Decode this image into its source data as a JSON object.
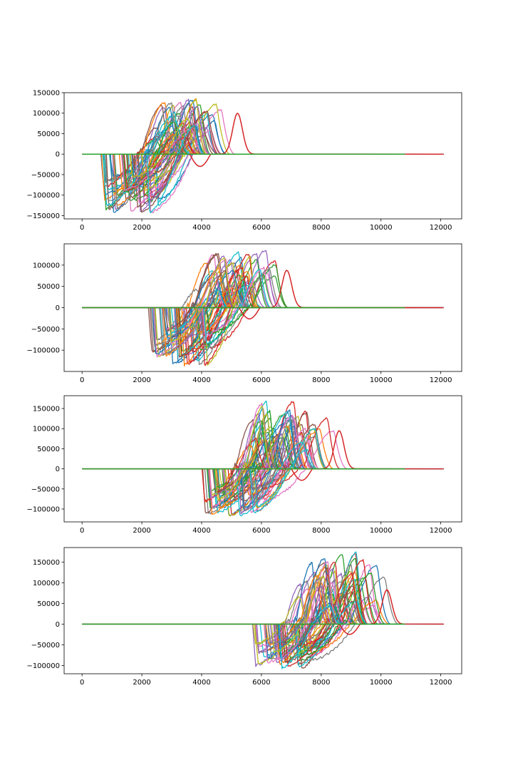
{
  "chart_data": [
    {
      "type": "line",
      "title": "",
      "xlabel": "",
      "ylabel": "",
      "xlim": [
        -600,
        12700
      ],
      "ylim": [
        -158000,
        150000
      ],
      "grid": false,
      "legend": "none",
      "x_ticks": [
        0,
        2000,
        4000,
        6000,
        8000,
        10000,
        12000
      ],
      "x_tick_labels": [
        "0",
        "2000",
        "4000",
        "6000",
        "8000",
        "10000",
        "12000"
      ],
      "y_ticks": [
        -150000,
        -100000,
        -50000,
        0,
        50000,
        100000,
        150000
      ],
      "y_tick_labels": [
        "−150000",
        "−100000",
        "−50000",
        "0",
        "50000",
        "100000",
        "150000"
      ],
      "series_summary": {
        "count": "many overlapping traces",
        "pulse_onset_range": [
          600,
          2500
        ],
        "negative_lobe_min": -145000,
        "positive_lobe_max": 135000,
        "late_outlier_peak": {
          "x": 5200,
          "y": 100000
        },
        "trace_extent": [
          0,
          12100
        ]
      }
    },
    {
      "type": "line",
      "title": "",
      "xlabel": "",
      "ylabel": "",
      "xlim": [
        -600,
        12700
      ],
      "ylim": [
        -150000,
        150000
      ],
      "grid": false,
      "legend": "none",
      "x_ticks": [
        0,
        2000,
        4000,
        6000,
        8000,
        10000,
        12000
      ],
      "x_tick_labels": [
        "0",
        "2000",
        "4000",
        "6000",
        "8000",
        "10000",
        "12000"
      ],
      "y_ticks": [
        -100000,
        -50000,
        0,
        50000,
        100000
      ],
      "y_tick_labels": [
        "−100000",
        "−50000",
        "0",
        "50000",
        "100000"
      ],
      "series_summary": {
        "count": "many overlapping traces",
        "pulse_onset_range": [
          2200,
          4200
        ],
        "negative_lobe_min": -135000,
        "positive_lobe_max": 137000,
        "late_outlier_peak": {
          "x": 6850,
          "y": 88000
        },
        "trace_extent": [
          0,
          12100
        ]
      }
    },
    {
      "type": "line",
      "title": "",
      "xlabel": "",
      "ylabel": "",
      "xlim": [
        -600,
        12700
      ],
      "ylim": [
        -132000,
        182000
      ],
      "grid": false,
      "legend": "none",
      "x_ticks": [
        0,
        2000,
        4000,
        6000,
        8000,
        10000,
        12000
      ],
      "x_tick_labels": [
        "0",
        "2000",
        "4000",
        "6000",
        "8000",
        "10000",
        "12000"
      ],
      "y_ticks": [
        -100000,
        -50000,
        0,
        50000,
        100000,
        150000
      ],
      "y_tick_labels": [
        "−100000",
        "−50000",
        "0",
        "50000",
        "100000",
        "150000"
      ],
      "series_summary": {
        "count": "many overlapping traces",
        "pulse_onset_range": [
          4000,
          6000
        ],
        "negative_lobe_min": -118000,
        "positive_lobe_max": 168000,
        "late_outlier_peak": {
          "x": 8600,
          "y": 95000
        },
        "trace_extent": [
          0,
          12100
        ]
      }
    },
    {
      "type": "line",
      "title": "",
      "xlabel": "",
      "ylabel": "",
      "xlim": [
        -600,
        12700
      ],
      "ylim": [
        -120000,
        185000
      ],
      "grid": false,
      "legend": "none",
      "x_ticks": [
        0,
        2000,
        4000,
        6000,
        8000,
        10000,
        12000
      ],
      "x_tick_labels": [
        "0",
        "2000",
        "4000",
        "6000",
        "8000",
        "10000",
        "12000"
      ],
      "y_ticks": [
        -100000,
        -50000,
        0,
        50000,
        100000,
        150000
      ],
      "y_tick_labels": [
        "−100000",
        "−50000",
        "0",
        "50000",
        "100000",
        "150000"
      ],
      "series_summary": {
        "count": "many overlapping traces",
        "pulse_onset_range": [
          5700,
          7600
        ],
        "negative_lobe_min": -107000,
        "positive_lobe_max": 175000,
        "late_outlier_peak": {
          "x": 10200,
          "y": 83000
        },
        "trace_extent": [
          0,
          12100
        ]
      }
    }
  ],
  "palette": [
    "#1f77b4",
    "#ff7f0e",
    "#2ca02c",
    "#d62728",
    "#9467bd",
    "#8c564b",
    "#e377c2",
    "#7f7f7f",
    "#bcbd22",
    "#17becf"
  ]
}
